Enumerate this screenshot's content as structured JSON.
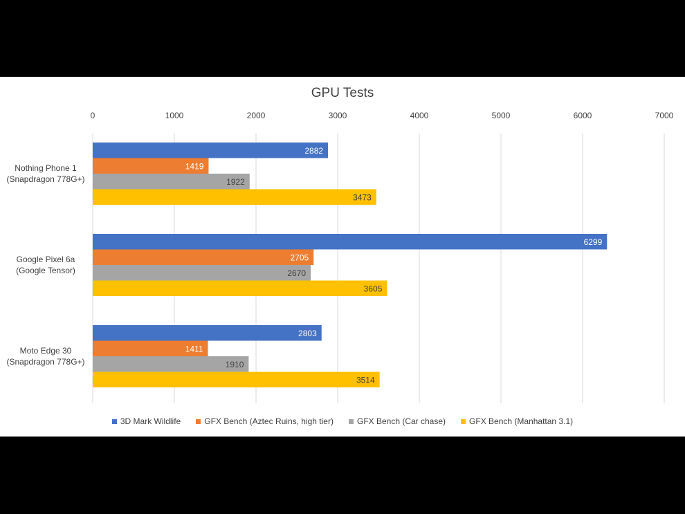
{
  "chart_data": {
    "type": "bar",
    "orientation": "horizontal",
    "title": "GPU Tests",
    "xlabel": "",
    "ylabel": "",
    "xlim": [
      0,
      7000
    ],
    "ticks": [
      "0",
      "1000",
      "2000",
      "3000",
      "4000",
      "5000",
      "6000",
      "7000"
    ],
    "x_axis_position": "top",
    "grid": true,
    "legend_position": "bottom",
    "categories": [
      [
        "Nothing Phone 1",
        "(Snapdragon 778G+)"
      ],
      [
        "Google Pixel 6a",
        "(Google Tensor)"
      ],
      [
        "Moto Edge 30",
        "(Snapdragon 778G+)"
      ]
    ],
    "series": [
      {
        "name": "3D Mark Wildlife",
        "color": "#4472c4",
        "label_color": "#ffffff",
        "values": [
          2882,
          6299,
          2803
        ]
      },
      {
        "name": "GFX Bench (Aztec Ruins, high tier)",
        "color": "#ed7d31",
        "label_color": "#ffffff",
        "values": [
          1419,
          2705,
          1411
        ]
      },
      {
        "name": "GFX Bench (Car chase)",
        "color": "#a5a5a5",
        "label_color": "#404040",
        "values": [
          1922,
          2670,
          1910
        ]
      },
      {
        "name": "GFX Bench (Manhattan 3.1)",
        "color": "#ffc000",
        "label_color": "#404040",
        "values": [
          3473,
          3605,
          3514
        ]
      }
    ]
  }
}
